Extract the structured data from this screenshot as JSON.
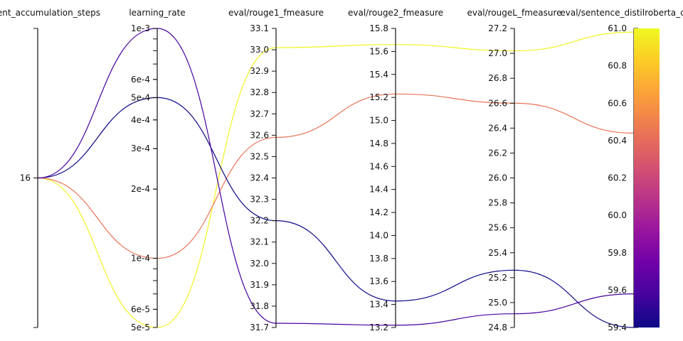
{
  "chart_data": {
    "type": "parallel_coordinates",
    "axes": [
      {
        "key": "gradient_accumulation_steps",
        "label": "gradient_accumulation_steps",
        "scale": "categorical",
        "categories": [
          "16"
        ],
        "ticks": [
          "16"
        ]
      },
      {
        "key": "learning_rate",
        "label": "learning_rate",
        "scale": "log",
        "range": [
          5e-05,
          0.001
        ],
        "ticks": [
          "1e-3",
          "6e-4",
          "5e-4",
          "4e-4",
          "3e-4",
          "2e-4",
          "1e-4",
          "6e-5",
          "5e-5"
        ]
      },
      {
        "key": "eval_rouge1_fmeasure",
        "label": "eval/rouge1_fmeasure",
        "scale": "linear",
        "range": [
          31.7,
          33.1
        ],
        "ticks": [
          "33.1",
          "33.0",
          "32.9",
          "32.8",
          "32.7",
          "32.6",
          "32.5",
          "32.4",
          "32.3",
          "32.2",
          "32.1",
          "32.0",
          "31.9",
          "31.8",
          "31.7"
        ]
      },
      {
        "key": "eval_rouge2_fmeasure",
        "label": "eval/rouge2_fmeasure",
        "scale": "linear",
        "range": [
          13.2,
          15.8
        ],
        "ticks": [
          "15.8",
          "15.6",
          "15.4",
          "15.2",
          "15.0",
          "14.8",
          "14.6",
          "14.4",
          "14.2",
          "14.0",
          "13.8",
          "13.6",
          "13.4",
          "13.2"
        ]
      },
      {
        "key": "eval_rougeL_fmeasure",
        "label": "eval/rougeL_fmeasure",
        "scale": "linear",
        "range": [
          24.8,
          27.2
        ],
        "ticks": [
          "27.2",
          "27.0",
          "26.8",
          "26.6",
          "26.4",
          "26.2",
          "26.0",
          "25.8",
          "25.6",
          "25.4",
          "25.2",
          "25.0",
          "24.8"
        ]
      },
      {
        "key": "eval_sentence_distilroberta_cosine",
        "label": "eval/sentence_distilroberta_cosine",
        "scale": "linear",
        "range": [
          59.4,
          61.0
        ],
        "ticks": [
          "61.0",
          "60.8",
          "60.6",
          "60.4",
          "60.2",
          "60.0",
          "59.8",
          "59.6",
          "59.4"
        ]
      }
    ],
    "runs": [
      {
        "gradient_accumulation_steps": "16",
        "learning_rate": 5e-05,
        "eval_rouge1_fmeasure": 33.01,
        "eval_rouge2_fmeasure": 15.66,
        "eval_rougeL_fmeasure": 27.02,
        "eval_sentence_distilroberta_cosine": 60.98
      },
      {
        "gradient_accumulation_steps": "16",
        "learning_rate": 0.0001,
        "eval_rouge1_fmeasure": 32.59,
        "eval_rouge2_fmeasure": 15.23,
        "eval_rougeL_fmeasure": 26.6,
        "eval_sentence_distilroberta_cosine": 60.44
      },
      {
        "gradient_accumulation_steps": "16",
        "learning_rate": 0.0005,
        "eval_rouge1_fmeasure": 32.2,
        "eval_rouge2_fmeasure": 13.43,
        "eval_rougeL_fmeasure": 25.26,
        "eval_sentence_distilroberta_cosine": 59.4
      },
      {
        "gradient_accumulation_steps": "16",
        "learning_rate": 0.001,
        "eval_rouge1_fmeasure": 31.72,
        "eval_rouge2_fmeasure": 13.22,
        "eval_rougeL_fmeasure": 24.91,
        "eval_sentence_distilroberta_cosine": 59.58
      }
    ],
    "color_axis": "eval_sentence_distilroberta_cosine",
    "colorscale": [
      "#0d0887",
      "#46039f",
      "#7201a8",
      "#9c179e",
      "#bd3786",
      "#d8576b",
      "#ed7953",
      "#fb9f3a",
      "#fdca26",
      "#f0f921"
    ],
    "colorbar": {
      "range": [
        59.4,
        61.0
      ]
    },
    "grid": false,
    "legend": "none"
  }
}
